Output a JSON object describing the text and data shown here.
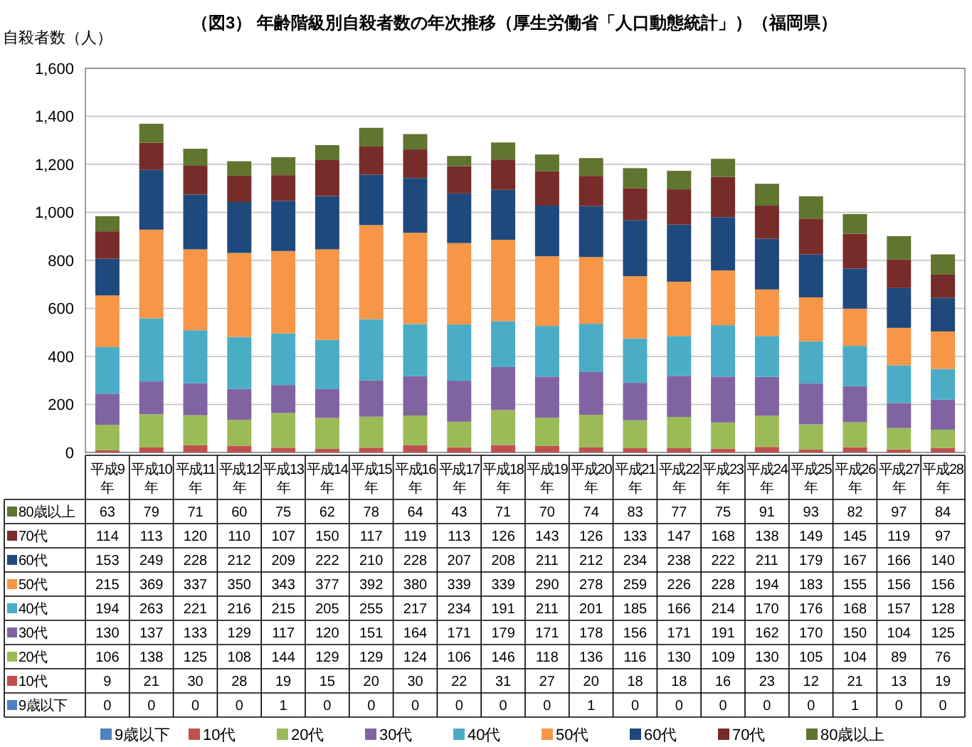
{
  "chart_data": {
    "type": "bar",
    "stacked": true,
    "title": "（図3） 年齢階級別自殺者数の年次推移（厚生労働省「人口動態統計」）（福岡県）",
    "ylabel": "自殺者数（人）",
    "categories": [
      "平成9年",
      "平成10年",
      "平成11年",
      "平成12年",
      "平成13年",
      "平成14年",
      "平成15年",
      "平成16年",
      "平成17年",
      "平成18年",
      "平成19年",
      "平成20年",
      "平成21年",
      "平成22年",
      "平成23年",
      "平成24年",
      "平成25年",
      "平成26年",
      "平成27年",
      "平成28年"
    ],
    "series": [
      {
        "name": "9歳以下",
        "color": "#4f81bd",
        "values": [
          0,
          0,
          0,
          0,
          1,
          0,
          0,
          0,
          0,
          0,
          0,
          1,
          0,
          0,
          0,
          0,
          0,
          1,
          0,
          0
        ]
      },
      {
        "name": "10代",
        "color": "#c0504d",
        "values": [
          9,
          21,
          30,
          28,
          19,
          15,
          20,
          30,
          22,
          31,
          27,
          20,
          18,
          18,
          16,
          23,
          12,
          21,
          13,
          19
        ]
      },
      {
        "name": "20代",
        "color": "#9bbb59",
        "values": [
          106,
          138,
          125,
          108,
          144,
          129,
          129,
          124,
          106,
          146,
          118,
          136,
          116,
          130,
          109,
          130,
          105,
          104,
          89,
          76
        ]
      },
      {
        "name": "30代",
        "color": "#8064a2",
        "values": [
          130,
          137,
          133,
          129,
          117,
          120,
          151,
          164,
          171,
          179,
          171,
          178,
          156,
          171,
          191,
          162,
          170,
          150,
          104,
          125
        ]
      },
      {
        "name": "40代",
        "color": "#4bacc6",
        "values": [
          194,
          263,
          221,
          216,
          215,
          205,
          255,
          217,
          234,
          191,
          211,
          201,
          185,
          166,
          214,
          170,
          176,
          168,
          157,
          128
        ]
      },
      {
        "name": "50代",
        "color": "#f79646",
        "values": [
          215,
          369,
          337,
          350,
          343,
          377,
          392,
          380,
          339,
          339,
          290,
          278,
          259,
          226,
          228,
          194,
          183,
          155,
          156,
          156
        ]
      },
      {
        "name": "60代",
        "color": "#1f497d",
        "values": [
          153,
          249,
          228,
          212,
          209,
          222,
          210,
          228,
          207,
          208,
          211,
          212,
          234,
          238,
          222,
          211,
          179,
          167,
          166,
          140
        ]
      },
      {
        "name": "70代",
        "color": "#772c2a",
        "values": [
          114,
          113,
          120,
          110,
          107,
          150,
          117,
          119,
          113,
          126,
          143,
          126,
          133,
          147,
          168,
          138,
          149,
          145,
          119,
          97
        ]
      },
      {
        "name": "80歳以上",
        "color": "#5f7530",
        "values": [
          63,
          79,
          71,
          60,
          75,
          62,
          78,
          64,
          43,
          71,
          70,
          74,
          83,
          77,
          75,
          91,
          93,
          82,
          97,
          84
        ]
      }
    ],
    "ylim": [
      0,
      1600
    ],
    "yticks": [
      {
        "value": 0,
        "label": "0"
      },
      {
        "value": 200,
        "label": "200"
      },
      {
        "value": 400,
        "label": "400"
      },
      {
        "value": 600,
        "label": "600"
      },
      {
        "value": 800,
        "label": "800"
      },
      {
        "value": 1000,
        "label": "1,000"
      },
      {
        "value": 1200,
        "label": "1,200"
      },
      {
        "value": 1400,
        "label": "1,400"
      },
      {
        "value": 1600,
        "label": "1,600"
      }
    ],
    "grid": "y",
    "legend": "bottom",
    "data_labels": true
  }
}
